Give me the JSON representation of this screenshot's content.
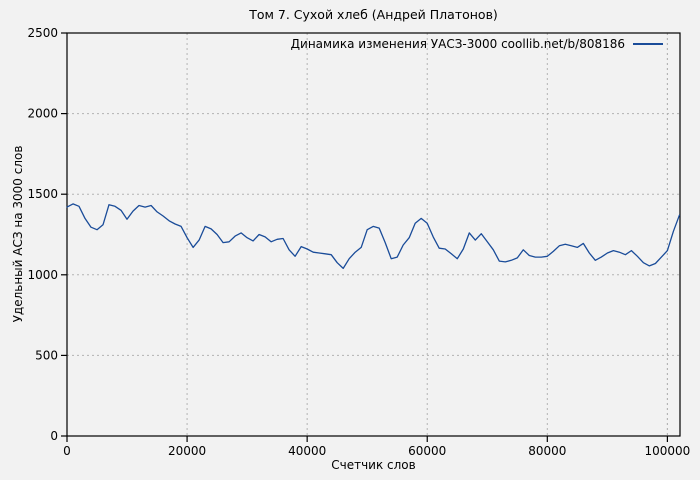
{
  "page": {
    "background": "#f2f2f2"
  },
  "chart_data": {
    "type": "line",
    "title": "Том 7. Сухой хлеб (Андрей Платонов)",
    "xlabel": "Счетчик слов",
    "ylabel": "Удельный АСЗ на 3000 слов",
    "xlim": [
      0,
      102100
    ],
    "ylim": [
      0,
      2500
    ],
    "x_ticks": [
      0,
      20000,
      40000,
      60000,
      80000,
      100000
    ],
    "y_ticks": [
      0,
      500,
      1000,
      1500,
      2000,
      2500
    ],
    "grid": true,
    "grid_style": "dashed",
    "grid_color": "#b3b3b3",
    "legend_position": "top-right-inside",
    "series": [
      {
        "name": "Динамика изменения УАСЗ-3000 coollib.net/b/808186",
        "color": "#1a4c99",
        "x_start": 0,
        "x_step": 1000,
        "values": [
          1420,
          1440,
          1425,
          1350,
          1295,
          1280,
          1310,
          1435,
          1425,
          1400,
          1345,
          1395,
          1430,
          1420,
          1430,
          1390,
          1365,
          1335,
          1315,
          1300,
          1230,
          1170,
          1215,
          1300,
          1285,
          1250,
          1200,
          1205,
          1240,
          1260,
          1230,
          1210,
          1250,
          1235,
          1205,
          1220,
          1225,
          1155,
          1115,
          1175,
          1160,
          1140,
          1135,
          1130,
          1125,
          1075,
          1040,
          1100,
          1140,
          1170,
          1280,
          1300,
          1290,
          1200,
          1100,
          1110,
          1185,
          1230,
          1320,
          1350,
          1320,
          1235,
          1165,
          1160,
          1130,
          1100,
          1160,
          1260,
          1215,
          1255,
          1205,
          1155,
          1085,
          1080,
          1090,
          1105,
          1155,
          1120,
          1110,
          1110,
          1115,
          1145,
          1180,
          1190,
          1180,
          1170,
          1195,
          1135,
          1090,
          1110,
          1135,
          1150,
          1140,
          1125,
          1150,
          1115,
          1075,
          1055,
          1070,
          1110,
          1150,
          1270,
          1370
        ]
      }
    ]
  }
}
